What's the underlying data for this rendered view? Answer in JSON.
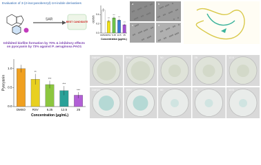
{
  "header": {
    "title": "Evaluation of 3-(2-isocyanobenzyl)-1H-indole derivatives",
    "sar": "SAR",
    "best": "BEST CANDIDATE",
    "summary": "Inhibited biofilm formation by 70% & inhibitory effects on pyocyanin by 73% against P. aeruginosa PAO1"
  },
  "chart_data": [
    {
      "type": "bar",
      "ylabel": "Pyocyanin",
      "xlabel": "Concentration (μg/mL)",
      "categories": [
        "DMSO",
        "RSV",
        "6.25",
        "12.5",
        "25"
      ],
      "values": [
        1.0,
        0.72,
        0.58,
        0.42,
        0.3
      ],
      "errors": [
        0.1,
        0.14,
        0.1,
        0.12,
        0.08
      ],
      "annotations": [
        null,
        "**",
        "***",
        "***",
        "***"
      ],
      "colors": [
        "#f0a020",
        "#e8d020",
        "#8cc63f",
        "#2aa198",
        "#b25fd6"
      ],
      "ylim": [
        0,
        1.25
      ],
      "yticks": [
        {
          "value": 0,
          "label": "0.0"
        },
        {
          "value": 0.5,
          "label": "0.5"
        },
        {
          "value": 1,
          "label": "1.0"
        }
      ]
    },
    {
      "type": "bar",
      "ylabel": "OD595",
      "xlabel": "Concentration (μg/mL)",
      "categories": [
        "DMSO",
        "RSV",
        "6.25",
        "12.5",
        "25"
      ],
      "values": [
        0.5,
        0.26,
        0.33,
        0.28,
        0.18
      ],
      "errors": [
        0.04,
        0.03,
        0.03,
        0.03,
        0.02
      ],
      "annotations": [
        null,
        "***",
        "***",
        "***",
        "***"
      ],
      "colors": [
        "#ffffff",
        "#f2e21a",
        "#6cc24a",
        "#3a7bd5",
        "#a14fd0"
      ],
      "ylim": [
        0,
        0.6
      ],
      "yticks": [
        {
          "value": 0,
          "label": "0.0"
        },
        {
          "value": 0.2,
          "label": "0.2"
        },
        {
          "value": 0.4,
          "label": "0.4"
        }
      ]
    }
  ],
  "micro": {
    "labels": [
      "a",
      "b",
      "c",
      "d"
    ]
  },
  "dishes": {
    "rows": [
      [
        "DMSO",
        "RSV",
        "50",
        "25",
        "12.5"
      ],
      [
        "DMSO",
        "RSV",
        "50",
        "25",
        "12.5"
      ]
    ]
  }
}
